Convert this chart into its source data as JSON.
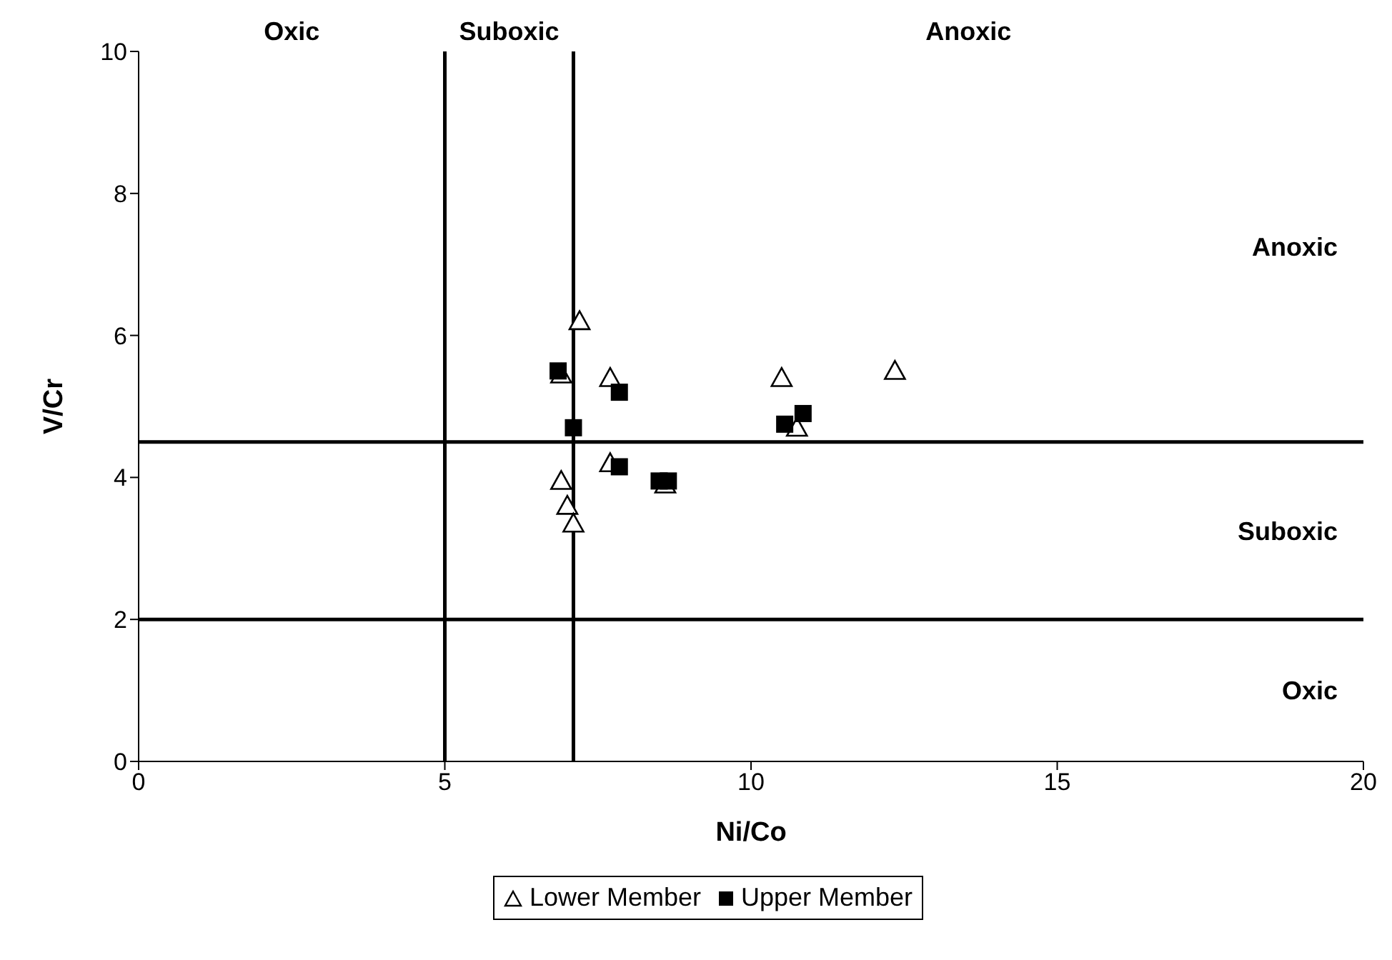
{
  "chart_data": {
    "type": "scatter",
    "xlabel": "Ni/Co",
    "ylabel": "V/Cr",
    "xlim": [
      0,
      20
    ],
    "xticks": [
      0,
      5,
      10,
      15,
      20
    ],
    "ylim": [
      0,
      10
    ],
    "yticks": [
      0,
      2,
      4,
      6,
      8,
      10
    ],
    "legend": "bottom",
    "series": [
      {
        "name": "Lower Member",
        "color": "#000000",
        "marker": "triangle",
        "x": [
          7.2,
          6.9,
          7.7,
          10.5,
          12.35,
          10.75,
          7.7,
          6.9,
          7.0,
          7.1,
          8.6
        ],
        "values": [
          6.2,
          5.45,
          5.4,
          5.4,
          5.5,
          4.7,
          4.2,
          3.95,
          3.6,
          3.35,
          3.9
        ]
      },
      {
        "name": "Upper Member",
        "color": "#000000",
        "marker": "square",
        "x": [
          6.85,
          7.85,
          7.1,
          10.55,
          10.85,
          7.85,
          8.5,
          8.65
        ],
        "values": [
          5.5,
          5.2,
          4.7,
          4.75,
          4.9,
          4.15,
          3.95,
          3.95
        ]
      }
    ],
    "ref_lines": [
      {
        "axis": "x",
        "value": 5,
        "label": null,
        "color": "#000000"
      },
      {
        "axis": "x",
        "value": 7.1,
        "label": null,
        "color": "#000000"
      },
      {
        "axis": "y",
        "value": 4.5,
        "label": null,
        "color": "#000000"
      },
      {
        "axis": "y",
        "value": 2,
        "label": null,
        "color": "#000000"
      }
    ],
    "annotations": [
      "Oxic",
      "Suboxic",
      "Anoxic",
      "Anoxic",
      "Suboxic",
      "Oxic"
    ]
  }
}
